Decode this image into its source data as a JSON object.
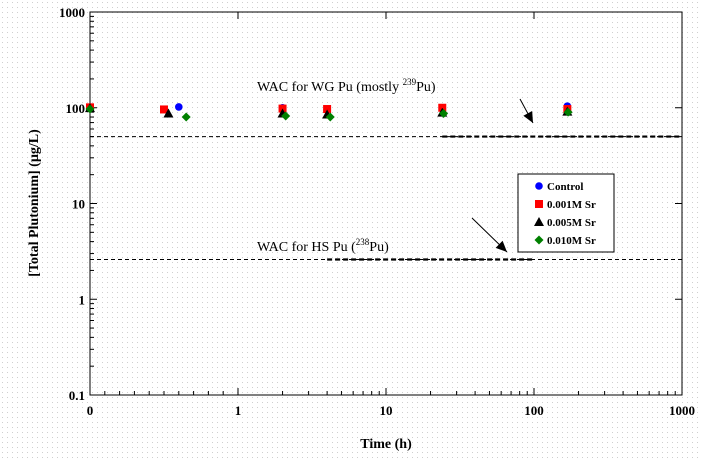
{
  "chart_data": {
    "type": "scatter",
    "title": "",
    "xlabel": "Time (h)",
    "ylabel": "[Total Plutonium]  (µg/L)",
    "x_scale": "symlog",
    "y_scale": "log",
    "xlim": [
      0,
      1000
    ],
    "ylim": [
      0.1,
      1000
    ],
    "x_ticks": [
      0,
      1,
      10,
      100,
      1000
    ],
    "x_tick_labels": [
      "0",
      "1",
      "10",
      "100",
      "1000"
    ],
    "y_ticks": [
      0.1,
      1,
      10,
      100,
      1000
    ],
    "y_tick_labels": [
      "0.1",
      "1",
      "10",
      "100",
      "1000"
    ],
    "grid": false,
    "legend_position": "right-middle",
    "series": [
      {
        "name": "Control",
        "color": "#0000ff",
        "marker": "circle",
        "x": [
          0,
          0.6,
          2,
          4,
          24,
          168
        ],
        "y": [
          100,
          102,
          100,
          95,
          98,
          104
        ]
      },
      {
        "name": "0.001M Sr",
        "color": "#ff0000",
        "marker": "square",
        "x": [
          0,
          0.5,
          2,
          4,
          24,
          168
        ],
        "y": [
          101,
          96,
          98,
          97,
          100,
          97
        ]
      },
      {
        "name": "0.005M Sr",
        "color": "#000000",
        "marker": "triangle",
        "x": [
          0,
          0.53,
          2,
          4,
          24,
          168
        ],
        "y": [
          99,
          87,
          87,
          85,
          89,
          91
        ]
      },
      {
        "name": "0.010M Sr",
        "color": "#008000",
        "marker": "diamond",
        "x": [
          0,
          0.65,
          2.1,
          4.2,
          24.5,
          170
        ],
        "y": [
          97,
          80,
          82,
          80,
          87,
          90
        ]
      }
    ],
    "reference_lines": [
      {
        "label_pre": "WAC for WG Pu (mostly ",
        "label_sup": "239",
        "label_post": "Pu)",
        "y": 50
      },
      {
        "label_pre": "WAC for HS Pu (",
        "label_sup": "238",
        "label_post": "Pu)",
        "y": 2.6
      }
    ]
  }
}
